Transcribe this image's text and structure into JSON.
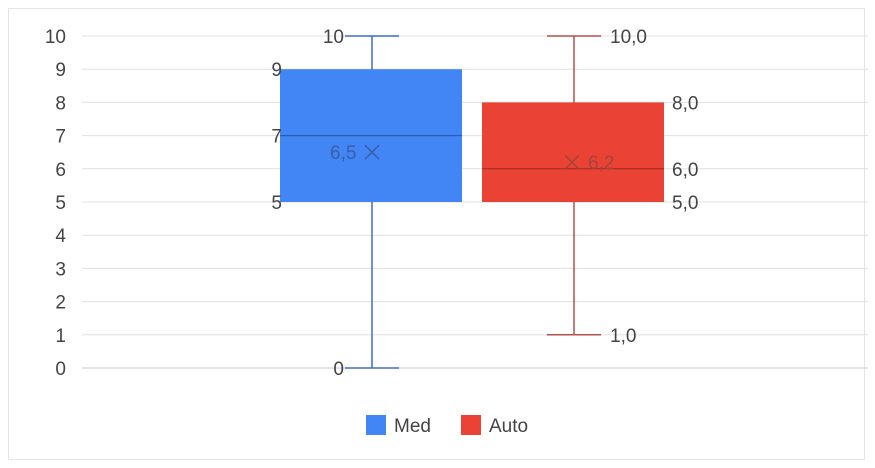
{
  "chart_data": {
    "type": "boxplot",
    "title": "",
    "xlabel": "",
    "ylabel": "",
    "ylim": [
      0,
      10
    ],
    "yticks": [
      "0",
      "1",
      "2",
      "3",
      "4",
      "5",
      "6",
      "7",
      "8",
      "9",
      "10"
    ],
    "grid": true,
    "legend_position": "bottom",
    "series": [
      {
        "name": "Med",
        "color": "#4285f4",
        "min": 0,
        "q1": 5,
        "median": 7,
        "q3": 9,
        "max": 10,
        "mean": 6.5,
        "labels": {
          "min": "0",
          "q1": "5",
          "median": "7",
          "q3": "9",
          "max": "10",
          "mean": "6,5"
        }
      },
      {
        "name": "Auto",
        "color": "#ea4335",
        "min": 1,
        "q1": 5,
        "median": 6,
        "q3": 8,
        "max": 10,
        "mean": 6.2,
        "labels": {
          "min": "1,0",
          "q1": "5,0",
          "median": "6,0",
          "q3": "8,0",
          "max": "10,0",
          "mean": "6,2"
        }
      }
    ]
  }
}
